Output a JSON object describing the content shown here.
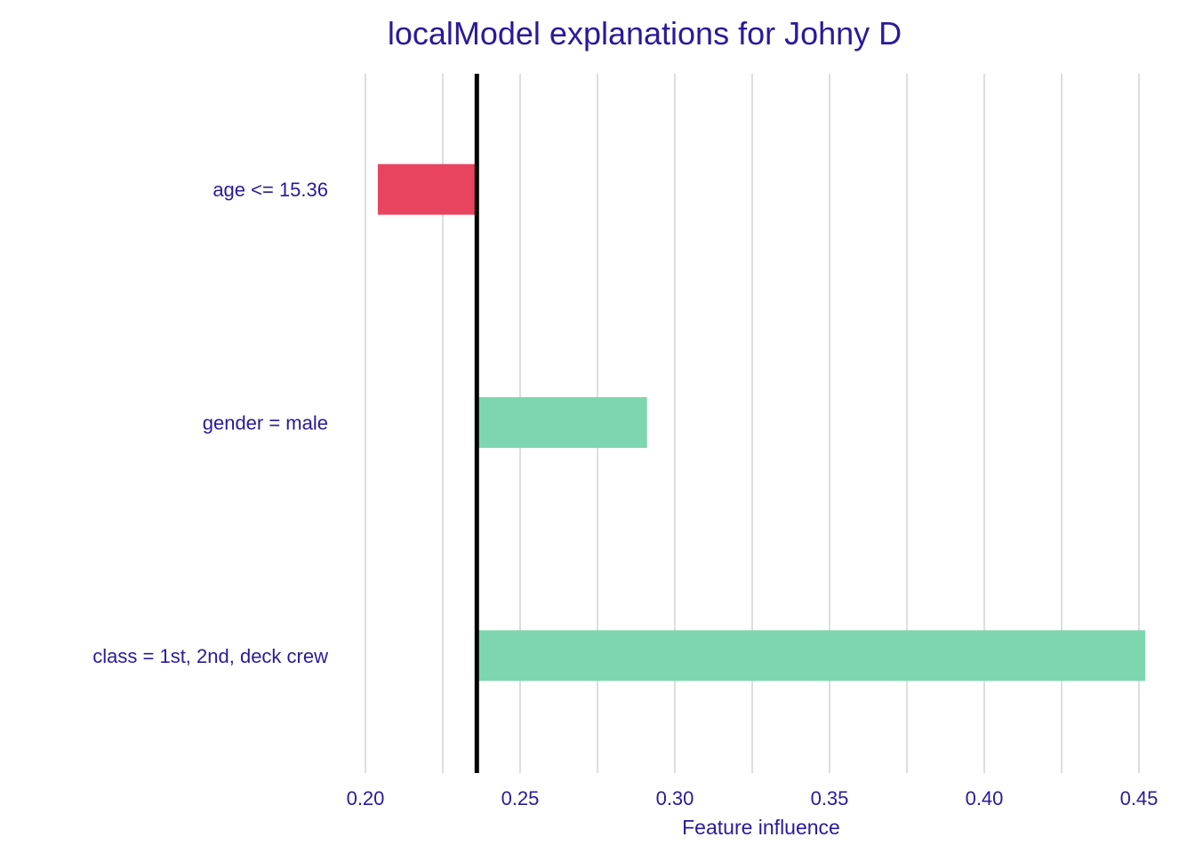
{
  "chart_data": {
    "type": "bar",
    "orientation": "horizontal",
    "title": "localModel explanations for Johny D",
    "xlabel": "Feature influence",
    "ylabel": "",
    "xlim": [
      0.2,
      0.45
    ],
    "x_ticks": [
      "0.20",
      "0.25",
      "0.30",
      "0.35",
      "0.40",
      "0.45"
    ],
    "baseline": 0.236,
    "categories": [
      "age <= 15.36",
      "gender = male",
      "class = 1st, 2nd, deck crew"
    ],
    "values": [
      0.204,
      0.291,
      0.452
    ],
    "grid": true,
    "colors": {
      "positive": "#7dd6af",
      "negative": "#e84460",
      "baseline": "#000000",
      "grid": "#dedede",
      "text": "#2a1a9a"
    }
  }
}
